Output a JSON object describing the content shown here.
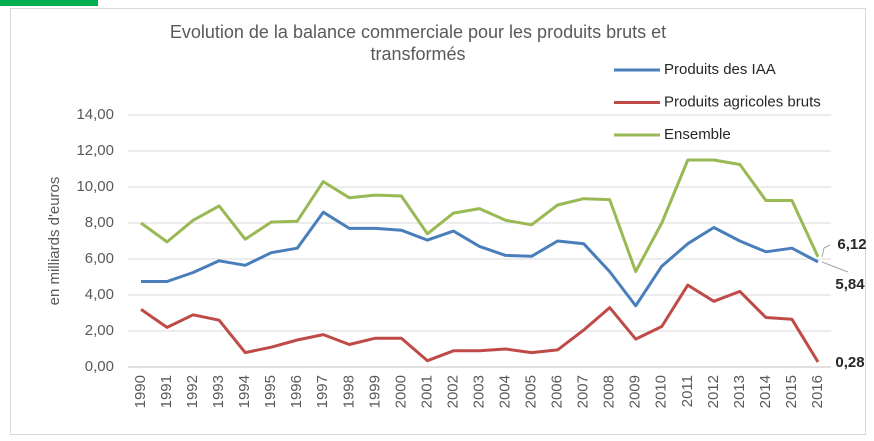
{
  "chart_data": {
    "type": "line",
    "title": [
      "Evolution de la balance commerciale pour les produits bruts et",
      "transformés"
    ],
    "y_label": "en milliards d'euros",
    "x": [
      "1990",
      "1991",
      "1992",
      "1993",
      "1994",
      "1995",
      "1996",
      "1997",
      "1998",
      "1999",
      "2000",
      "2001",
      "2002",
      "2003",
      "2004",
      "2005",
      "2006",
      "2007",
      "2008",
      "2009",
      "2010",
      "2011",
      "2012",
      "2013",
      "2014",
      "2015",
      "2016"
    ],
    "ylim": [
      0,
      14
    ],
    "yticks": [
      {
        "value": 0,
        "label": "0,00"
      },
      {
        "value": 2,
        "label": "2,00"
      },
      {
        "value": 4,
        "label": "4,00"
      },
      {
        "value": 6,
        "label": "6,00"
      },
      {
        "value": 8,
        "label": "8,00"
      },
      {
        "value": 10,
        "label": "10,00"
      },
      {
        "value": 12,
        "label": "12,00"
      },
      {
        "value": 14,
        "label": "14,00"
      }
    ],
    "grid": true,
    "legend": "top-right",
    "series": [
      {
        "name": "Produits des IAA",
        "color": "#4a7ebb",
        "values": [
          4.75,
          4.75,
          5.25,
          5.9,
          5.65,
          6.35,
          6.6,
          8.6,
          7.7,
          7.7,
          7.6,
          7.05,
          7.55,
          6.7,
          6.2,
          6.15,
          7.0,
          6.85,
          5.3,
          3.4,
          5.6,
          6.85,
          7.75,
          7.0,
          6.4,
          6.6,
          5.84
        ],
        "value_labels": [
          null,
          null,
          null,
          null,
          null,
          null,
          null,
          null,
          null,
          null,
          null,
          null,
          null,
          null,
          null,
          null,
          null,
          null,
          null,
          null,
          null,
          null,
          null,
          null,
          null,
          null,
          "5,84"
        ]
      },
      {
        "name": "Produits agricoles bruts",
        "color": "#be4b48",
        "values": [
          3.2,
          2.2,
          2.9,
          2.6,
          0.8,
          1.1,
          1.5,
          1.8,
          1.25,
          1.6,
          1.6,
          0.35,
          0.9,
          0.9,
          1.0,
          0.8,
          0.95,
          2.05,
          3.3,
          1.55,
          2.25,
          4.55,
          3.65,
          4.2,
          2.75,
          2.65,
          0.28
        ],
        "value_labels": [
          null,
          null,
          null,
          null,
          null,
          null,
          null,
          null,
          null,
          null,
          null,
          null,
          null,
          null,
          null,
          null,
          null,
          null,
          null,
          null,
          null,
          null,
          null,
          null,
          null,
          null,
          "0,28"
        ]
      },
      {
        "name": "Ensemble",
        "color": "#98b954",
        "values": [
          8.0,
          6.95,
          8.15,
          8.95,
          7.1,
          8.05,
          8.1,
          10.3,
          9.4,
          9.55,
          9.5,
          7.4,
          8.55,
          8.8,
          8.15,
          7.9,
          9.0,
          9.35,
          9.3,
          5.3,
          8.0,
          11.5,
          11.5,
          11.25,
          9.25,
          9.25,
          6.12
        ],
        "value_labels": [
          null,
          null,
          null,
          null,
          null,
          null,
          null,
          null,
          null,
          null,
          null,
          null,
          null,
          null,
          null,
          null,
          null,
          null,
          null,
          null,
          null,
          null,
          null,
          null,
          null,
          null,
          "6,12"
        ]
      }
    ]
  }
}
